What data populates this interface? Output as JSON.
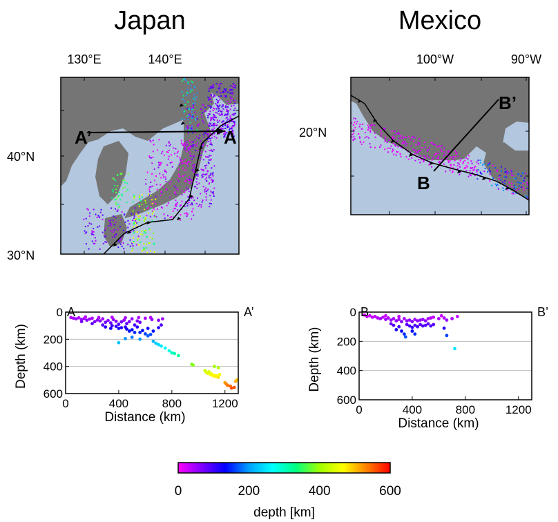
{
  "colors": {
    "ocean": "#b3c7de",
    "land": "#757575",
    "background": "#ffffff",
    "colorbar_gradient": [
      "#ff00ff",
      "#8000ff",
      "#0000ff",
      "#00a0ff",
      "#00ffff",
      "#00ff80",
      "#a0ff00",
      "#ffff00",
      "#ff8000",
      "#ff0000"
    ]
  },
  "panels": {
    "japan": {
      "title": "Japan",
      "lon_labels": [
        "130°E",
        "140°E"
      ],
      "lat_labels": [
        "40°N",
        "30°N"
      ],
      "section_start": "A",
      "section_end": "A’"
    },
    "mexico": {
      "title": "Mexico",
      "lon_labels": [
        "100°W",
        "90°W"
      ],
      "lat_labels": [
        "20°N"
      ],
      "section_start": "B",
      "section_end": "B’"
    }
  },
  "chart_data": [
    {
      "type": "scatter",
      "name": "Japan cross-section A–A’",
      "xlabel": "Distance (km)",
      "ylabel": "Depth (km)",
      "xlim": [
        0,
        1300
      ],
      "ylim": [
        600,
        0
      ],
      "xticks": [
        0,
        400,
        800,
        1200
      ],
      "yticks": [
        0,
        200,
        400,
        600
      ],
      "ytick_labels": [
        "0",
        "200",
        "400",
        "600"
      ],
      "end_labels": [
        "A",
        "A’"
      ],
      "grid": "horizontal",
      "points": [
        [
          40,
          40
        ],
        [
          60,
          45
        ],
        [
          80,
          50
        ],
        [
          100,
          42
        ],
        [
          120,
          55
        ],
        [
          140,
          48
        ],
        [
          160,
          60
        ],
        [
          180,
          52
        ],
        [
          200,
          45
        ],
        [
          220,
          70
        ],
        [
          240,
          58
        ],
        [
          260,
          65
        ],
        [
          280,
          50
        ],
        [
          300,
          75
        ],
        [
          320,
          62
        ],
        [
          340,
          80
        ],
        [
          360,
          55
        ],
        [
          380,
          68
        ],
        [
          400,
          90
        ],
        [
          420,
          72
        ],
        [
          440,
          60
        ],
        [
          460,
          85
        ],
        [
          480,
          70
        ],
        [
          500,
          50
        ],
        [
          520,
          95
        ],
        [
          540,
          65
        ],
        [
          560,
          75
        ],
        [
          600,
          45
        ],
        [
          640,
          40
        ],
        [
          700,
          60
        ],
        [
          150,
          35
        ],
        [
          250,
          40
        ],
        [
          350,
          38
        ],
        [
          450,
          42
        ],
        [
          550,
          40
        ],
        [
          650,
          55
        ],
        [
          730,
          50
        ],
        [
          120,
          70
        ],
        [
          200,
          85
        ],
        [
          280,
          95
        ],
        [
          300,
          110
        ],
        [
          340,
          120
        ],
        [
          380,
          105
        ],
        [
          420,
          115
        ],
        [
          460,
          125
        ],
        [
          500,
          130
        ],
        [
          540,
          110
        ],
        [
          580,
          135
        ],
        [
          620,
          120
        ],
        [
          660,
          140
        ],
        [
          350,
          100
        ],
        [
          400,
          120
        ],
        [
          450,
          110
        ],
        [
          480,
          140
        ],
        [
          520,
          150
        ],
        [
          560,
          150
        ],
        [
          600,
          160
        ],
        [
          640,
          165
        ],
        [
          700,
          115
        ],
        [
          720,
          95
        ],
        [
          400,
          225
        ],
        [
          450,
          195
        ],
        [
          500,
          185
        ],
        [
          560,
          200
        ],
        [
          620,
          175
        ],
        [
          660,
          215
        ],
        [
          680,
          230
        ],
        [
          700,
          240
        ],
        [
          720,
          250
        ],
        [
          750,
          265
        ],
        [
          780,
          285
        ],
        [
          800,
          300
        ],
        [
          820,
          305
        ],
        [
          850,
          320
        ],
        [
          950,
          385
        ],
        [
          960,
          390
        ],
        [
          1050,
          430
        ],
        [
          1060,
          445
        ],
        [
          1070,
          450
        ],
        [
          1080,
          440
        ],
        [
          1090,
          460
        ],
        [
          1100,
          455
        ],
        [
          1110,
          470
        ],
        [
          1120,
          465
        ],
        [
          1130,
          475
        ],
        [
          1140,
          470
        ],
        [
          1150,
          480
        ],
        [
          1160,
          460
        ],
        [
          1120,
          400
        ],
        [
          1150,
          410
        ],
        [
          1200,
          520
        ],
        [
          1210,
          530
        ],
        [
          1220,
          540
        ],
        [
          1240,
          545
        ],
        [
          1250,
          560
        ],
        [
          1270,
          555
        ],
        [
          1280,
          510
        ],
        [
          1290,
          500
        ]
      ]
    },
    {
      "type": "scatter",
      "name": "Mexico cross-section B–B’",
      "xlabel": "Distance (km)",
      "ylabel": "Depth (km)",
      "xlim": [
        0,
        1300
      ],
      "ylim": [
        600,
        0
      ],
      "xticks": [
        0,
        400,
        800,
        1200
      ],
      "yticks": [
        0,
        200,
        400,
        600
      ],
      "ytick_labels": [
        "0",
        "200",
        "400",
        "600"
      ],
      "end_labels": [
        "B",
        "B’"
      ],
      "grid": "horizontal",
      "points": [
        [
          40,
          20
        ],
        [
          60,
          30
        ],
        [
          80,
          25
        ],
        [
          100,
          35
        ],
        [
          120,
          30
        ],
        [
          140,
          40
        ],
        [
          160,
          45
        ],
        [
          180,
          35
        ],
        [
          200,
          50
        ],
        [
          220,
          40
        ],
        [
          240,
          55
        ],
        [
          260,
          45
        ],
        [
          280,
          60
        ],
        [
          300,
          50
        ],
        [
          320,
          65
        ],
        [
          340,
          45
        ],
        [
          360,
          60
        ],
        [
          380,
          55
        ],
        [
          400,
          65
        ],
        [
          420,
          50
        ],
        [
          440,
          60
        ],
        [
          460,
          55
        ],
        [
          480,
          50
        ],
        [
          500,
          60
        ],
        [
          520,
          45
        ],
        [
          540,
          40
        ],
        [
          560,
          35
        ],
        [
          600,
          45
        ],
        [
          640,
          40
        ],
        [
          700,
          45
        ],
        [
          740,
          30
        ],
        [
          660,
          55
        ],
        [
          620,
          25
        ],
        [
          200,
          25
        ],
        [
          300,
          30
        ],
        [
          360,
          85
        ],
        [
          380,
          95
        ],
        [
          400,
          105
        ],
        [
          420,
          90
        ],
        [
          440,
          100
        ],
        [
          460,
          85
        ],
        [
          480,
          95
        ],
        [
          500,
          90
        ],
        [
          520,
          80
        ],
        [
          540,
          95
        ],
        [
          560,
          85
        ],
        [
          300,
          100
        ],
        [
          280,
          120
        ],
        [
          320,
          130
        ],
        [
          340,
          150
        ],
        [
          350,
          170
        ],
        [
          260,
          90
        ],
        [
          240,
          80
        ],
        [
          420,
          150
        ],
        [
          400,
          130
        ],
        [
          640,
          110
        ],
        [
          660,
          160
        ],
        [
          720,
          250
        ]
      ]
    },
    {
      "type": "colorbar",
      "name": "depth colorbar",
      "xlabel": "depth [km]",
      "range": [
        0,
        600
      ],
      "ticks": [
        "0",
        "200",
        "400",
        "600"
      ]
    }
  ]
}
